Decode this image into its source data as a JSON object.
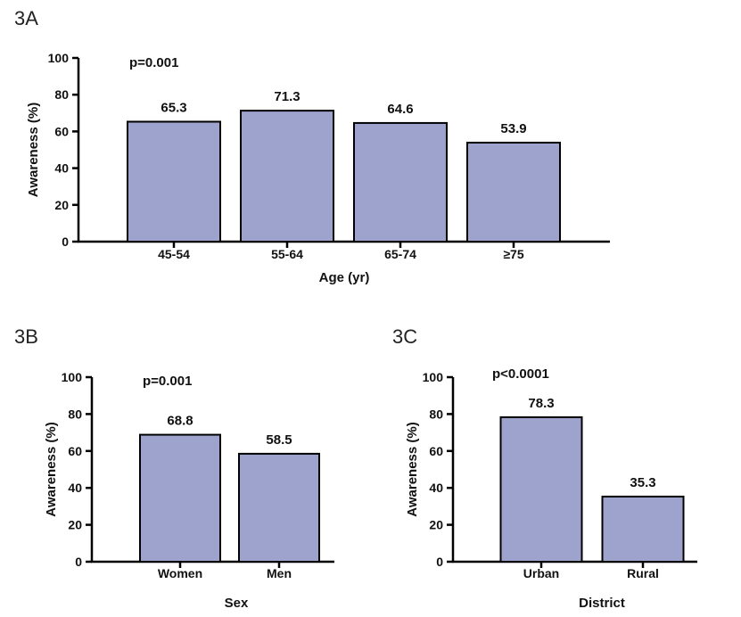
{
  "chart_data": [
    {
      "panel": "3A",
      "type": "bar",
      "categories": [
        "45-54",
        "55-64",
        "65-74",
        "≥75"
      ],
      "values": [
        65.3,
        71.3,
        64.6,
        53.9
      ],
      "value_labels": [
        "65.3",
        "71.3",
        "64.6",
        "53.9"
      ],
      "annotation": "p=0.001",
      "xlabel": "Age (yr)",
      "ylabel": "Awareness (%)",
      "ylim": [
        0,
        100
      ],
      "yticks": [
        "0",
        "20",
        "40",
        "60",
        "80",
        "100"
      ],
      "bar_color": "#9da3cc"
    },
    {
      "panel": "3B",
      "type": "bar",
      "categories": [
        "Women",
        "Men"
      ],
      "values": [
        68.8,
        58.5
      ],
      "value_labels": [
        "68.8",
        "58.5"
      ],
      "annotation": "p=0.001",
      "xlabel": "Sex",
      "ylabel": "Awareness (%)",
      "ylim": [
        0,
        100
      ],
      "yticks": [
        "0",
        "20",
        "40",
        "60",
        "80",
        "100"
      ],
      "bar_color": "#9da3cc"
    },
    {
      "panel": "3C",
      "type": "bar",
      "categories": [
        "Urban",
        "Rural"
      ],
      "values": [
        78.3,
        35.3
      ],
      "value_labels": [
        "78.3",
        "35.3"
      ],
      "annotation": "p<0.0001",
      "xlabel": "District",
      "ylabel": "Awareness (%)",
      "ylim": [
        0,
        100
      ],
      "yticks": [
        "0",
        "20",
        "40",
        "60",
        "80",
        "100"
      ],
      "bar_color": "#9da3cc"
    }
  ]
}
